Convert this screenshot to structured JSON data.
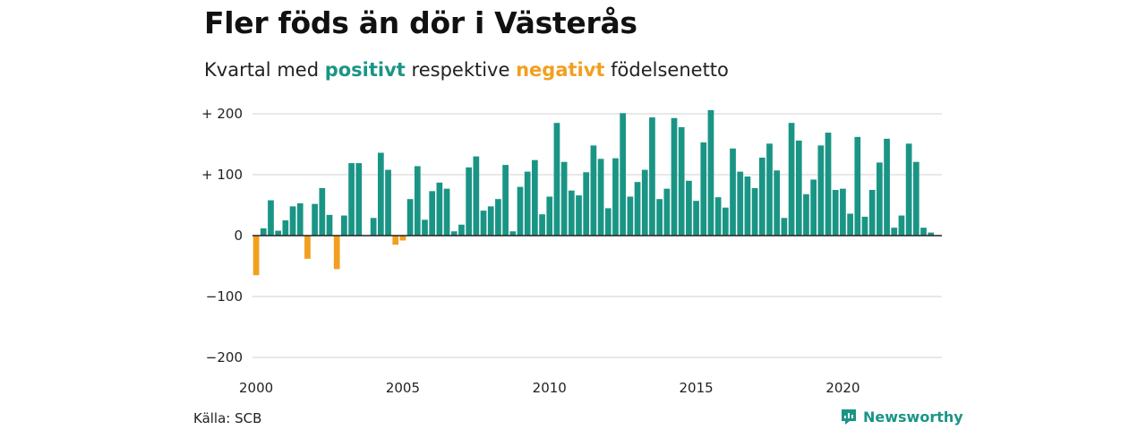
{
  "header": {
    "title": "Fler föds än dör i Västerås",
    "subtitle_prefix": "Kvartal med",
    "subtitle_positive": "positivt",
    "subtitle_middle": "respektive",
    "subtitle_negative": "negativt",
    "subtitle_suffix": "födelsenetto"
  },
  "footer": {
    "source": "Källa: SCB",
    "brand": "Newsworthy",
    "brand_icon": "newsworthy-logo-icon"
  },
  "colors": {
    "positive": "#1a9585",
    "negative": "#f29f1f",
    "grid": "#d9d9d9",
    "zero_line": "#222222"
  },
  "chart_data": {
    "type": "bar",
    "title": "Fler föds än dör i Västerås",
    "subtitle": "Kvartal med positivt respektive negativt födelsenetto",
    "xlabel": "",
    "ylabel": "",
    "ylim": [
      -200,
      200
    ],
    "yticks": [
      200,
      100,
      0,
      -100,
      -200
    ],
    "ytick_labels": [
      "+ 200",
      "+ 100",
      "0",
      "−100",
      "−200"
    ],
    "xticks": [
      2000,
      2005,
      2010,
      2015,
      2020
    ],
    "xlim": [
      1999.875,
      2023.375
    ],
    "grid": true,
    "legend": "none",
    "start_year": 2000,
    "quarters_per_year": 4,
    "values": [
      -65,
      12,
      58,
      8,
      25,
      48,
      53,
      -38,
      52,
      78,
      34,
      -55,
      33,
      119,
      119,
      0,
      29,
      136,
      108,
      -15,
      -8,
      60,
      114,
      26,
      73,
      87,
      77,
      7,
      18,
      112,
      130,
      41,
      48,
      60,
      116,
      7,
      80,
      105,
      124,
      35,
      64,
      185,
      121,
      74,
      66,
      104,
      148,
      126,
      45,
      127,
      201,
      64,
      88,
      108,
      194,
      60,
      77,
      193,
      178,
      90,
      57,
      153,
      206,
      63,
      46,
      143,
      105,
      97,
      78,
      128,
      151,
      107,
      29,
      185,
      156,
      68,
      92,
      148,
      169,
      75,
      77,
      36,
      162,
      31,
      75,
      120,
      159,
      13,
      33,
      151,
      121,
      13,
      5
    ]
  }
}
